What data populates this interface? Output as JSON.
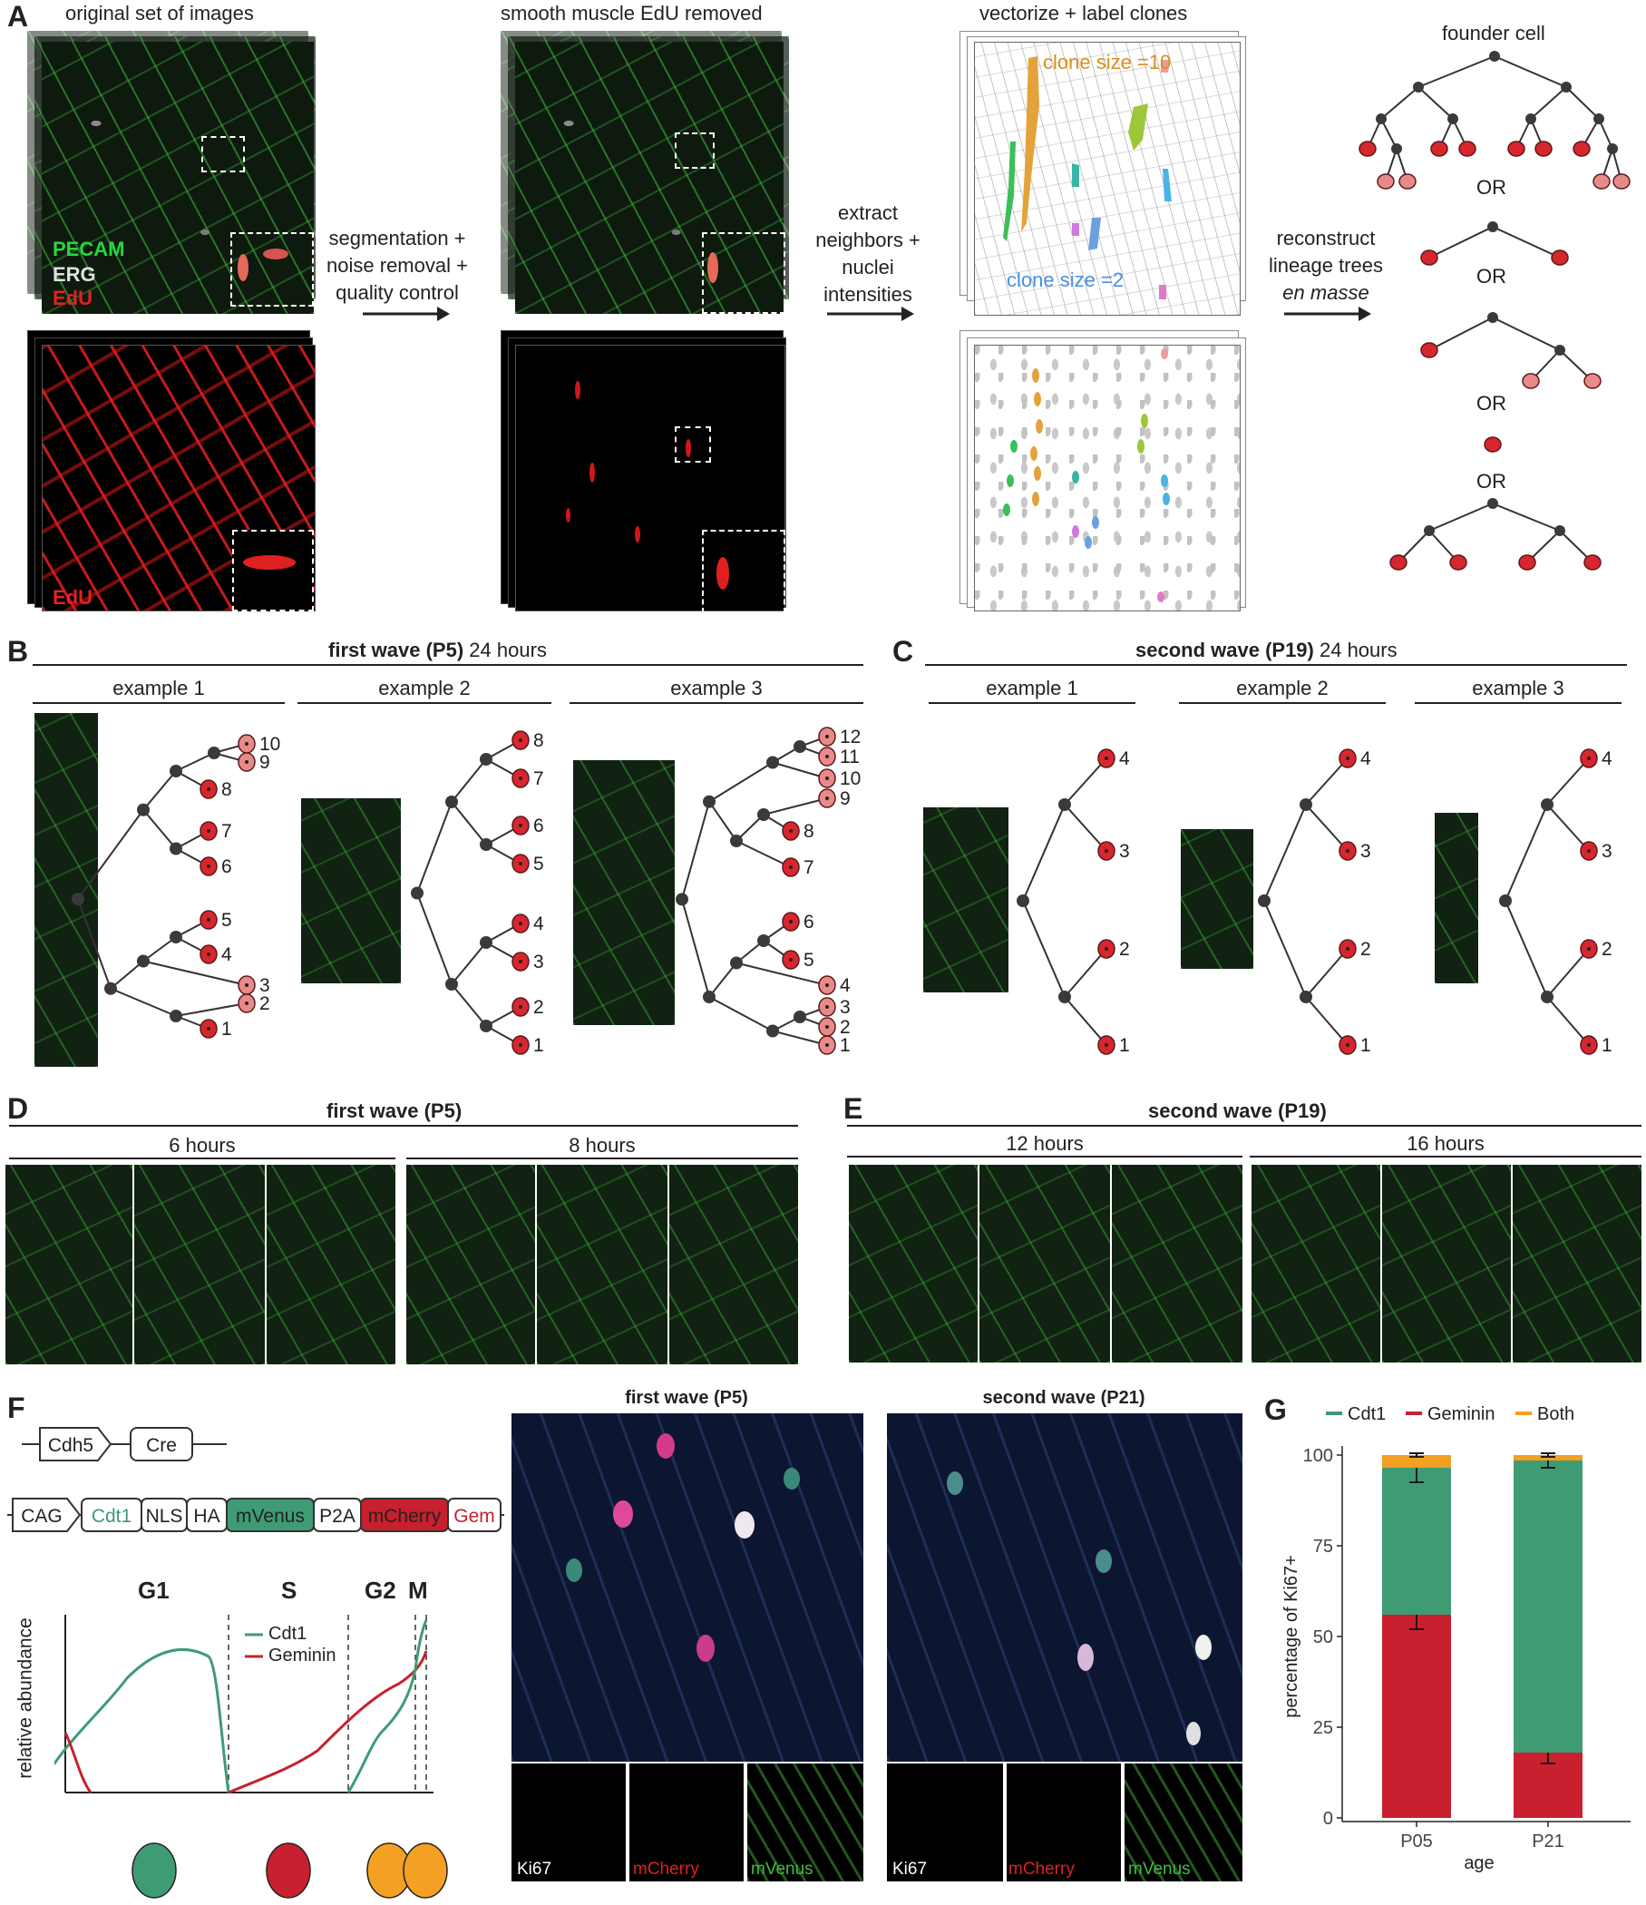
{
  "panelA": {
    "label": "A",
    "col1_title": "original set of images",
    "col2_title": "smooth muscle EdU removed",
    "col3_title": "vectorize + label clones",
    "col4_title": "founder cell",
    "stain_pecam": "PECAM",
    "stain_erg": "ERG",
    "stain_edu": "EdU",
    "stain_edu_bottom": "EdU",
    "arrow1": "segmentation +\nnoise removal +\nquality control",
    "arrow2": "extract\nneighbors +\nnuclei\nintensities",
    "arrow3a": "reconstruct\nlineage trees",
    "arrow3b": "en masse",
    "clone10": "clone size =10",
    "clone2": "clone size =2",
    "or": "OR"
  },
  "panelB": {
    "label": "B",
    "header_bold": "first wave (P5)",
    "header_rest": " 24 hours",
    "examples": [
      "example 1",
      "example 2",
      "example 3"
    ]
  },
  "panelC": {
    "label": "C",
    "header_bold": "second wave (P19)",
    "header_rest": " 24 hours",
    "examples": [
      "example 1",
      "example 2",
      "example 3"
    ]
  },
  "panelD": {
    "label": "D",
    "header": "first wave (P5)",
    "sub": [
      "6 hours",
      "8 hours"
    ]
  },
  "panelE": {
    "label": "E",
    "header": "second wave (P19)",
    "sub": [
      "12 hours",
      "16 hours"
    ]
  },
  "panelF": {
    "label": "F",
    "construct1": [
      "Cdh5",
      "Cre"
    ],
    "construct2": [
      "CAG",
      "Cdt1",
      "NLS",
      "HA",
      "mVenus",
      "P2A",
      "mCherry",
      "Gem"
    ],
    "phases": [
      "G1",
      "S",
      "G2",
      "M"
    ],
    "legend": [
      "Cdt1",
      "Geminin"
    ],
    "ylabel": "relative abundance",
    "img1_title": "first wave (P5)",
    "img2_title": "second wave (P21)",
    "channels": [
      "Ki67",
      "mCherry",
      "mVenus"
    ]
  },
  "colors": {
    "cdt1": "#3f9b74",
    "geminin": "#c8202f",
    "both": "#f3a023",
    "node": "#3a3a3a",
    "leaf": "#d8262e",
    "leaf_light": "#e98a8a"
  },
  "chart_data": {
    "type": "bar",
    "stacked": true,
    "panel_label": "G",
    "categories": [
      "P05",
      "P21"
    ],
    "series": [
      {
        "name": "Geminin",
        "values": [
          56,
          18
        ]
      },
      {
        "name": "Cdt1",
        "values": [
          40.5,
          80.5
        ]
      },
      {
        "name": "Both",
        "values": [
          3.5,
          1.5
        ]
      }
    ],
    "error_bars": {
      "Geminin": [
        4,
        3
      ],
      "Cdt1": [
        4,
        2
      ],
      "Both": [
        0.5,
        0.5
      ]
    },
    "xlabel": "age",
    "ylabel": "percentage of Ki67+",
    "ylim": [
      0,
      100
    ],
    "yticks": [
      0,
      25,
      50,
      75,
      100
    ],
    "legend_position": "top"
  }
}
